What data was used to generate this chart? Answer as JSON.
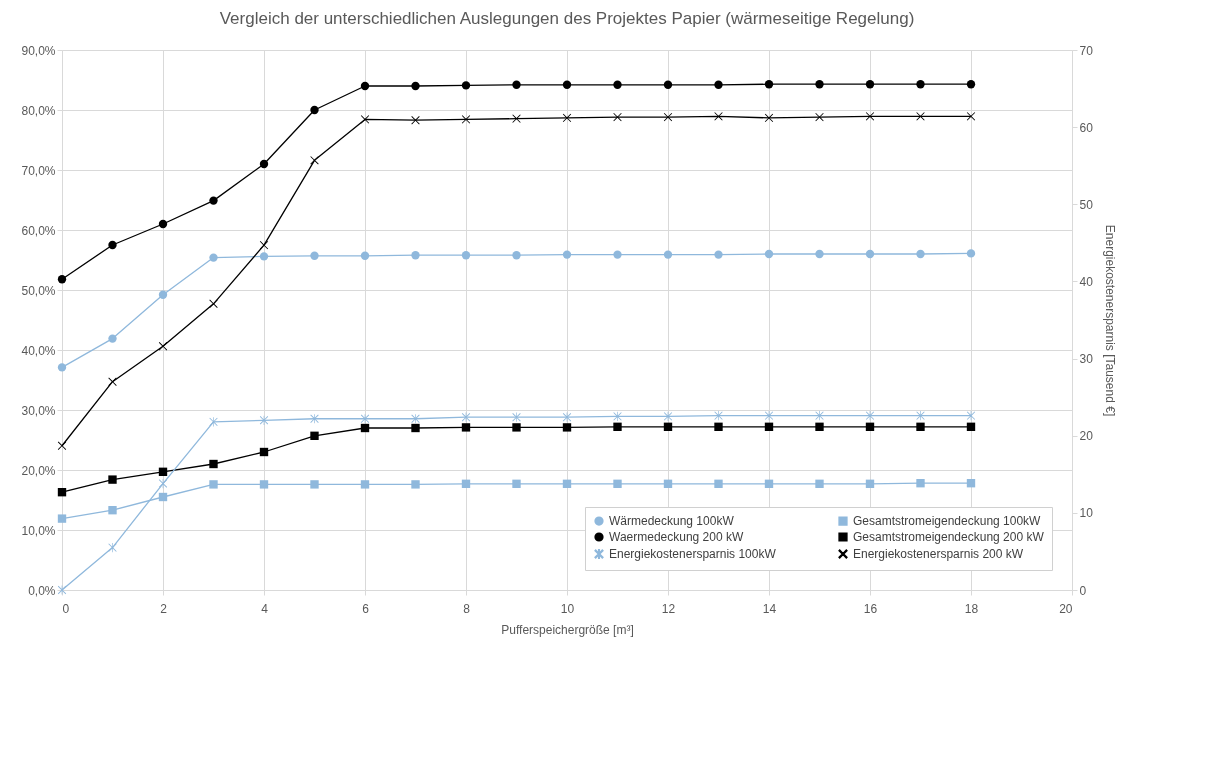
{
  "chart_data": {
    "type": "line",
    "title": "Vergleich der unterschiedlichen Auslegungen des Projektes Papier (wärmeseitige Regelung)",
    "xlabel": "Pufferspeichergröße [m³]",
    "y2label": "Energiekostenersparnis [Tausend €]",
    "x": [
      0,
      1,
      2,
      3,
      4,
      5,
      6,
      7,
      8,
      9,
      10,
      11,
      12,
      13,
      14,
      15,
      16,
      17,
      18
    ],
    "xlim": [
      0,
      20
    ],
    "xticks": [
      0,
      2,
      4,
      6,
      8,
      10,
      12,
      14,
      16,
      18,
      20
    ],
    "ylim": [
      0,
      90
    ],
    "yticks": [
      {
        "value": 0,
        "label": "0,0%"
      },
      {
        "value": 10,
        "label": "10,0%"
      },
      {
        "value": 20,
        "label": "20,0%"
      },
      {
        "value": 30,
        "label": "30,0%"
      },
      {
        "value": 40,
        "label": "40,0%"
      },
      {
        "value": 50,
        "label": "50,0%"
      },
      {
        "value": 60,
        "label": "60,0%"
      },
      {
        "value": 70,
        "label": "70,0%"
      },
      {
        "value": 80,
        "label": "80,0%"
      },
      {
        "value": 90,
        "label": "90,0%"
      }
    ],
    "y2lim": [
      0,
      70
    ],
    "y2ticks": [
      0,
      10,
      20,
      30,
      40,
      50,
      60,
      70
    ],
    "grid": true,
    "legend": "bottom right",
    "series": [
      {
        "name": "Wärmedeckung 100kW",
        "color": "#8fb8dc",
        "marker": "circle",
        "values": [
          37.1,
          41.9,
          49.2,
          55.4,
          55.6,
          55.7,
          55.7,
          55.8,
          55.8,
          55.8,
          55.9,
          55.9,
          55.9,
          55.9,
          56,
          56,
          56,
          56,
          56.1
        ]
      },
      {
        "name": "Gesamtstromeigendeckung 100kW",
        "color": "#8fb8dc",
        "marker": "square",
        "values": [
          11.9,
          13.3,
          15.5,
          17.6,
          17.6,
          17.6,
          17.6,
          17.6,
          17.7,
          17.7,
          17.7,
          17.7,
          17.7,
          17.7,
          17.7,
          17.7,
          17.7,
          17.8,
          17.8
        ]
      },
      {
        "name": "Waermedeckung 200 kW",
        "color": "#000000",
        "marker": "circle",
        "values": [
          51.8,
          57.5,
          61,
          64.9,
          71,
          80,
          84,
          84,
          84.1,
          84.2,
          84.2,
          84.2,
          84.2,
          84.2,
          84.3,
          84.3,
          84.3,
          84.3,
          84.3
        ]
      },
      {
        "name": "Gesamtstromeigendeckung 200 kW",
        "color": "#000000",
        "marker": "square",
        "values": [
          16.3,
          18.4,
          19.7,
          21,
          23,
          25.7,
          27,
          27,
          27.1,
          27.1,
          27.1,
          27.2,
          27.2,
          27.2,
          27.2,
          27.2,
          27.2,
          27.2,
          27.2
        ]
      },
      {
        "name": "Energiekostenersparnis 100kW",
        "color": "#8fb8dc",
        "marker": "star",
        "axis": "y2",
        "values": [
          0,
          5.5,
          13.8,
          21.8,
          22,
          22.2,
          22.2,
          22.2,
          22.4,
          22.4,
          22.4,
          22.5,
          22.5,
          22.6,
          22.6,
          22.6,
          22.6,
          22.6,
          22.6
        ]
      },
      {
        "name": "Energiekostenersparnis 200 kW",
        "color": "#000000",
        "marker": "cross",
        "axis": "y2",
        "values": [
          18.7,
          27,
          31.6,
          37.1,
          44.7,
          55.7,
          61,
          60.9,
          61,
          61.1,
          61.2,
          61.3,
          61.3,
          61.4,
          61.2,
          61.3,
          61.4,
          61.4,
          61.4
        ]
      }
    ]
  }
}
